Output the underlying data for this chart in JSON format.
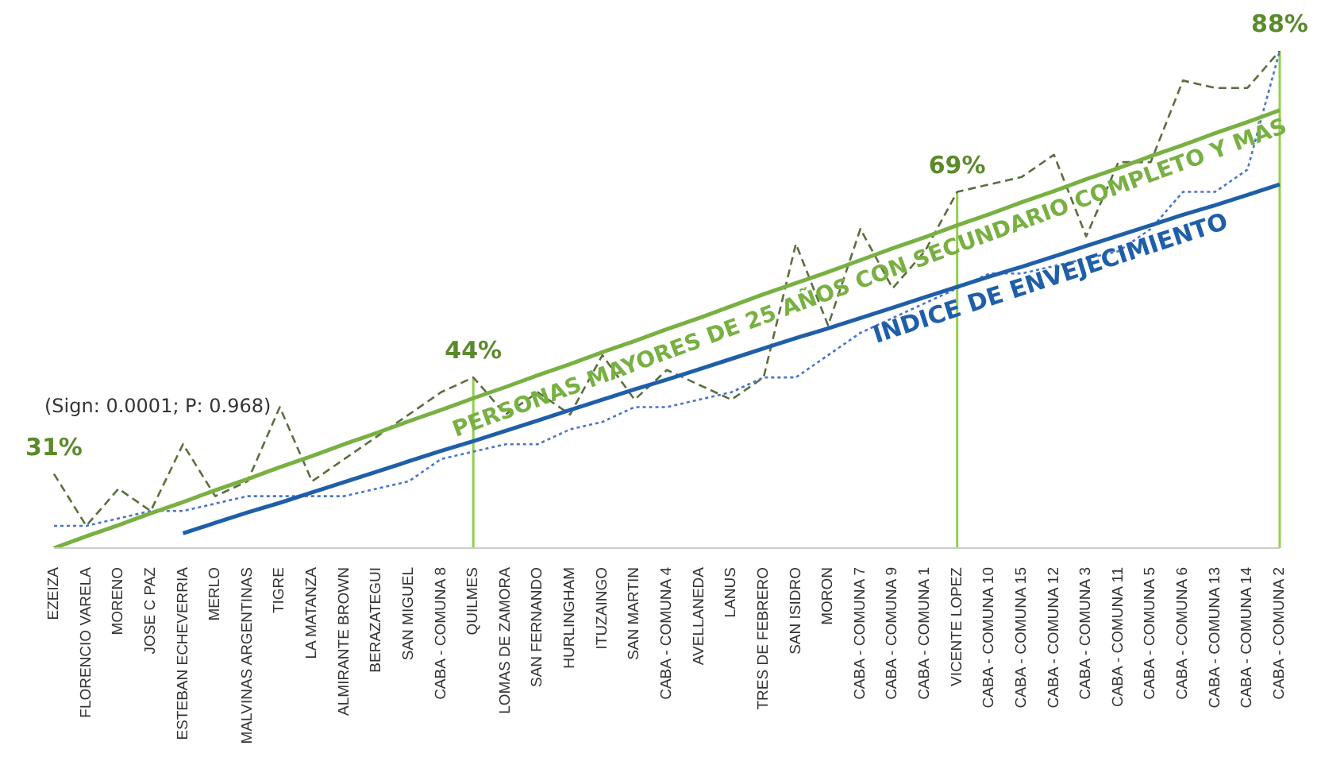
{
  "chart_data": {
    "type": "line",
    "annotations": [
      "(Sign: 0.0001; P: 0.968)"
    ],
    "categories": [
      "EZEIZA",
      "FLORENCIO VARELA",
      "MORENO",
      "JOSE C PAZ",
      "ESTEBAN ECHEVERRIA",
      "MERLO",
      "MALVINAS ARGENTINAS",
      "TIGRE",
      "LA MATANZA",
      "ALMIRANTE BROWN",
      "BERAZATEGUI",
      "SAN MIGUEL",
      "CABA - COMUNA 8",
      "QUILMES",
      "LOMAS DE ZAMORA",
      "SAN FERNANDO",
      "HURLINGHAM",
      "ITUZAINGO",
      "SAN MARTIN",
      "CABA - COMUNA 4",
      "AVELLANEDA",
      "LANUS",
      "TRES DE FEBRERO",
      "SAN ISIDRO",
      "MORON",
      "CABA - COMUNA 7",
      "CABA - COMUNA 9",
      "CABA - COMUNA 1",
      "VICENTE LOPEZ",
      "CABA - COMUNA 10",
      "CABA - COMUNA 15",
      "CABA - COMUNA 12",
      "CABA - COMUNA 3",
      "CABA - COMUNA 11",
      "CABA - COMUNA 5",
      "CABA - COMUNA 6",
      "CABA - COMUNA 13",
      "CABA - COMUNA 14",
      "CABA - COMUNA 2"
    ],
    "series": [
      {
        "color": "#5b6e3c",
        "line_style": "dashed",
        "values": [
          31,
          24,
          29,
          26,
          35,
          28,
          30,
          40,
          30,
          33,
          36,
          39,
          42,
          44,
          39,
          42,
          39,
          47,
          41,
          45,
          43,
          41,
          44,
          62,
          51,
          64,
          56,
          61,
          69,
          70,
          71,
          74,
          63,
          73,
          73,
          84,
          83,
          83,
          88
        ],
        "value_labels": [
          "31%",
          null,
          null,
          null,
          null,
          null,
          null,
          null,
          null,
          null,
          null,
          null,
          null,
          "44%",
          null,
          null,
          null,
          null,
          null,
          null,
          null,
          null,
          null,
          null,
          null,
          null,
          null,
          null,
          "69%",
          null,
          null,
          null,
          null,
          null,
          null,
          null,
          null,
          null,
          "88%"
        ]
      },
      {
        "color": "#4a74c9",
        "line_style": "dotted",
        "values": [
          24,
          24,
          25,
          26,
          26,
          27,
          28,
          28,
          28,
          28,
          29,
          30,
          33,
          34,
          35,
          35,
          37,
          38,
          40,
          40,
          41,
          42,
          44,
          44,
          47,
          50,
          52,
          54,
          56,
          58,
          58,
          59,
          60,
          61,
          64,
          69,
          69,
          72,
          88
        ]
      },
      {
        "name": "PERSONAS MAYORES DE 25 AÑOS CON SECUNDARIO COMPLETO Y MÁS",
        "color": "#78b042",
        "line_style": "solid",
        "values": [
          21,
          22.6,
          24.1,
          25.7,
          27.2,
          28.8,
          30.3,
          31.9,
          33.4,
          35,
          36.5,
          38.1,
          39.6,
          41.2,
          42.7,
          44.3,
          45.8,
          47.4,
          48.9,
          50.5,
          52,
          53.6,
          55.2,
          56.7,
          58.2,
          59.8,
          61.4,
          62.9,
          64.5,
          66,
          67.6,
          69.1,
          70.7,
          72.2,
          73.8,
          75.3,
          76.9,
          78.4,
          80
        ]
      },
      {
        "name": "INDICE DE ENVEJECIMIENTO",
        "color": "#1f5fa8",
        "line_style": "solid",
        "values": [
          null,
          null,
          null,
          null,
          23,
          24.4,
          25.8,
          27.1,
          28.5,
          29.9,
          31.3,
          32.7,
          34.1,
          35.4,
          36.8,
          38.2,
          39.6,
          41,
          42.4,
          43.7,
          45.1,
          46.5,
          47.9,
          49.3,
          50.6,
          52,
          53.4,
          54.8,
          56.2,
          57.6,
          58.9,
          60.3,
          61.7,
          63.1,
          64.5,
          65.9,
          67.2,
          68.6,
          70
        ]
      }
    ],
    "ref_lines": [
      {
        "axis": "x",
        "value": "QUILMES",
        "color": "#92d050"
      },
      {
        "axis": "x",
        "value": "VICENTE LOPEZ",
        "color": "#92d050"
      },
      {
        "axis": "x",
        "value": "CABA - COMUNA 2",
        "color": "#92d050"
      }
    ],
    "tick_labels": "x",
    "grid": false,
    "marker": "none"
  }
}
